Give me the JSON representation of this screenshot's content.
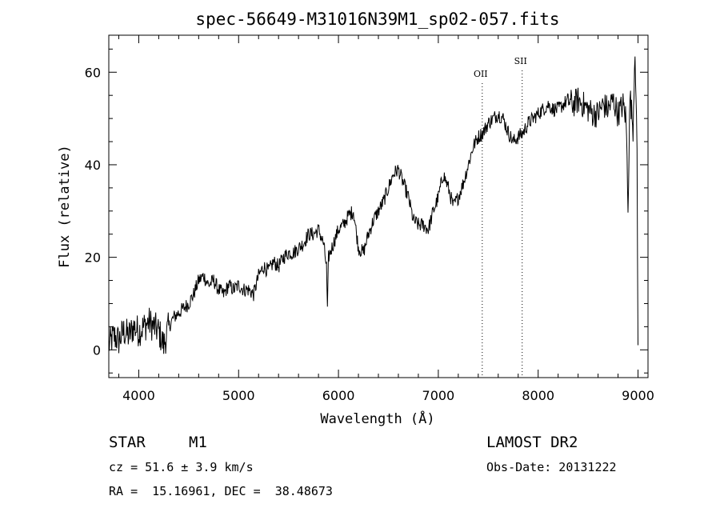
{
  "chart_data": {
    "type": "line",
    "title": "spec-56649-M31016N39M1_sp02-057.fits",
    "xlabel": "Wavelength (Å)",
    "ylabel": "Flux (relative)",
    "xlim": [
      3700,
      9100
    ],
    "ylim": [
      -6,
      68
    ],
    "x_ticks": [
      4000,
      5000,
      6000,
      7000,
      8000,
      9000
    ],
    "y_ticks": [
      0,
      20,
      40,
      60
    ],
    "grid": false,
    "line_color": "#000000",
    "series": [
      {
        "x": [
          3700,
          3750,
          3800,
          3850,
          3900,
          3950,
          4000,
          4050,
          4100,
          4150,
          4200,
          4250,
          4300,
          4350,
          4400,
          4450,
          4500,
          4550,
          4600,
          4650,
          4700,
          4750,
          4800,
          4850,
          4900,
          4950,
          5000,
          5050,
          5100,
          5150,
          5200,
          5250,
          5300,
          5350,
          5400,
          5450,
          5500,
          5550,
          5600,
          5650,
          5700,
          5750,
          5800,
          5850,
          5880,
          5890,
          5900,
          5950,
          6000,
          6050,
          6100,
          6150,
          6200,
          6250,
          6300,
          6350,
          6400,
          6450,
          6500,
          6550,
          6600,
          6650,
          6700,
          6750,
          6800,
          6850,
          6900,
          6950,
          7000,
          7050,
          7100,
          7150,
          7200,
          7250,
          7300,
          7350,
          7400,
          7450,
          7500,
          7550,
          7600,
          7650,
          7700,
          7750,
          7800,
          7850,
          7900,
          7950,
          8000,
          8050,
          8100,
          8150,
          8200,
          8250,
          8300,
          8350,
          8400,
          8450,
          8500,
          8550,
          8600,
          8650,
          8700,
          8750,
          8800,
          8850,
          8880,
          8900,
          8920,
          8950,
          8970,
          8990,
          9000
        ],
        "y": [
          1,
          3,
          2,
          4,
          3,
          5,
          4,
          5,
          6,
          5,
          4,
          1,
          5,
          7,
          8,
          9,
          10,
          12,
          15,
          16,
          14,
          15,
          13,
          12,
          14,
          13,
          14,
          13,
          13,
          12,
          16,
          18,
          17,
          19,
          18,
          20,
          21,
          21,
          22,
          23,
          25,
          25,
          26,
          23,
          18,
          8,
          20,
          23,
          26,
          27,
          29,
          30,
          22,
          21,
          25,
          28,
          30,
          32,
          35,
          38,
          39,
          36,
          33,
          28,
          27,
          27,
          26,
          30,
          33,
          38,
          35,
          31,
          33,
          36,
          40,
          44,
          46,
          47,
          49,
          50,
          51,
          50,
          47,
          45,
          46,
          47,
          49,
          50,
          51,
          52,
          53,
          52,
          52,
          53,
          54,
          53,
          54,
          53,
          52,
          51,
          51,
          53,
          52,
          54,
          51,
          53,
          50,
          32,
          55,
          48,
          66,
          42,
          0
        ]
      }
    ],
    "annotations": [
      {
        "label": "OII",
        "x": 7440
      },
      {
        "label": "SII",
        "x": 7840
      }
    ]
  },
  "info": {
    "object_class": "STAR",
    "subclass": "M1",
    "survey": "LAMOST DR2",
    "cz": "cz = 51.6 ± 3.9 km/s",
    "obs_date": "Obs-Date: 20131222",
    "coords": "RA =  15.16961, DEC =  38.48673"
  }
}
